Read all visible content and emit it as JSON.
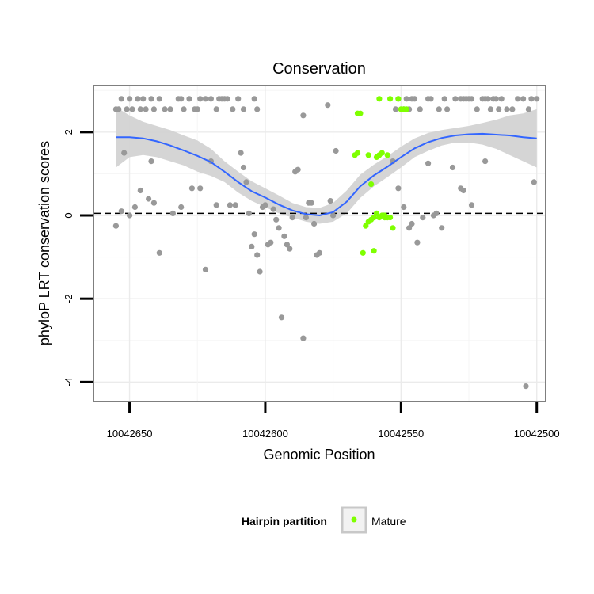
{
  "chart_data": {
    "type": "scatter",
    "title": "Conservation",
    "xlabel": "Genomic Position",
    "ylabel": "phyloP LRT conservation scores",
    "xlim": [
      10042663,
      10042497
    ],
    "ylim": [
      -4.45,
      3.1
    ],
    "x_reversed": true,
    "x_ticks": [
      10042650,
      10042600,
      10042550,
      10042500
    ],
    "x_tick_labels": [
      "10042650",
      "10042600",
      "10042550",
      "10042500"
    ],
    "y_ticks": [
      -4,
      -2,
      0,
      2
    ],
    "y_tick_labels": [
      "-4",
      "-2",
      "0",
      "2"
    ],
    "grid": true,
    "reference_line": {
      "y": 0.05,
      "style": "dashed",
      "color": "#000000"
    },
    "legend": {
      "title": "Hairpin partition",
      "placement": "bottom",
      "entries": [
        {
          "label": "Mature",
          "color": "#7fff00"
        }
      ]
    },
    "colors": {
      "other": "#999999",
      "mature": "#7fff00",
      "smooth": "#3366ff",
      "ribbon": "#d3d3d3"
    },
    "series": [
      {
        "name": "",
        "color": "#999999",
        "points": [
          [
            10042655,
            2.55
          ],
          [
            10042653,
            2.8
          ],
          [
            10042654,
            2.55
          ],
          [
            10042651,
            2.55
          ],
          [
            10042650,
            2.8
          ],
          [
            10042649,
            2.55
          ],
          [
            10042647,
            2.8
          ],
          [
            10042646,
            2.55
          ],
          [
            10042645,
            2.8
          ],
          [
            10042644,
            2.55
          ],
          [
            10042642,
            2.8
          ],
          [
            10042641,
            2.55
          ],
          [
            10042639,
            2.8
          ],
          [
            10042637,
            2.55
          ],
          [
            10042635,
            2.55
          ],
          [
            10042632,
            2.8
          ],
          [
            10042631,
            2.8
          ],
          [
            10042630,
            2.55
          ],
          [
            10042628,
            2.8
          ],
          [
            10042626,
            2.55
          ],
          [
            10042625,
            2.55
          ],
          [
            10042624,
            2.8
          ],
          [
            10042622,
            2.8
          ],
          [
            10042620,
            2.8
          ],
          [
            10042618,
            2.55
          ],
          [
            10042617,
            2.8
          ],
          [
            10042616,
            2.8
          ],
          [
            10042615,
            2.8
          ],
          [
            10042614,
            2.8
          ],
          [
            10042612,
            2.55
          ],
          [
            10042610,
            2.8
          ],
          [
            10042608,
            2.55
          ],
          [
            10042604,
            2.8
          ],
          [
            10042603,
            2.55
          ],
          [
            10042655,
            -0.25
          ],
          [
            10042653,
            0.1
          ],
          [
            10042652,
            1.5
          ],
          [
            10042650,
            0.0
          ],
          [
            10042648,
            0.2
          ],
          [
            10042646,
            0.6
          ],
          [
            10042643,
            0.4
          ],
          [
            10042642,
            1.3
          ],
          [
            10042641,
            0.3
          ],
          [
            10042639,
            -0.9
          ],
          [
            10042634,
            0.05
          ],
          [
            10042631,
            0.2
          ],
          [
            10042627,
            0.65
          ],
          [
            10042624,
            0.65
          ],
          [
            10042622,
            -1.3
          ],
          [
            10042620,
            1.3
          ],
          [
            10042618,
            0.25
          ],
          [
            10042613,
            0.25
          ],
          [
            10042611,
            0.25
          ],
          [
            10042609,
            1.5
          ],
          [
            10042608,
            1.15
          ],
          [
            10042607,
            0.8
          ],
          [
            10042606,
            0.05
          ],
          [
            10042605,
            -0.75
          ],
          [
            10042604,
            -0.45
          ],
          [
            10042603,
            -0.95
          ],
          [
            10042602,
            -1.35
          ],
          [
            10042601,
            0.2
          ],
          [
            10042600,
            0.25
          ],
          [
            10042599,
            -0.7
          ],
          [
            10042598,
            -0.65
          ],
          [
            10042597,
            0.15
          ],
          [
            10042596,
            -0.1
          ],
          [
            10042595,
            -0.3
          ],
          [
            10042594,
            -2.45
          ],
          [
            10042593,
            -0.5
          ],
          [
            10042592,
            -0.7
          ],
          [
            10042591,
            -0.8
          ],
          [
            10042590,
            -0.05
          ],
          [
            10042589,
            1.05
          ],
          [
            10042588,
            1.1
          ],
          [
            10042586,
            2.4
          ],
          [
            10042585,
            -0.05
          ],
          [
            10042584,
            0.3
          ],
          [
            10042583,
            0.3
          ],
          [
            10042582,
            -0.2
          ],
          [
            10042581,
            -0.95
          ],
          [
            10042580,
            -0.9
          ],
          [
            10042586,
            -2.95
          ],
          [
            10042577,
            2.65
          ],
          [
            10042576,
            0.35
          ],
          [
            10042575,
            0.0
          ],
          [
            10042574,
            1.55
          ],
          [
            10042552,
            2.55
          ],
          [
            10042551,
            2.8
          ],
          [
            10042549,
            2.55
          ],
          [
            10042548,
            2.8
          ],
          [
            10042547,
            2.55
          ],
          [
            10042546,
            2.8
          ],
          [
            10042545,
            2.8
          ],
          [
            10042543,
            2.55
          ],
          [
            10042540,
            2.8
          ],
          [
            10042539,
            2.8
          ],
          [
            10042536,
            2.55
          ],
          [
            10042534,
            2.8
          ],
          [
            10042533,
            2.55
          ],
          [
            10042530,
            2.8
          ],
          [
            10042528,
            2.8
          ],
          [
            10042527,
            2.8
          ],
          [
            10042526,
            2.8
          ],
          [
            10042525,
            2.8
          ],
          [
            10042524,
            2.8
          ],
          [
            10042522,
            2.55
          ],
          [
            10042520,
            2.8
          ],
          [
            10042519,
            2.8
          ],
          [
            10042518,
            2.8
          ],
          [
            10042517,
            2.55
          ],
          [
            10042516,
            2.8
          ],
          [
            10042515,
            2.8
          ],
          [
            10042514,
            2.55
          ],
          [
            10042513,
            2.8
          ],
          [
            10042511,
            2.55
          ],
          [
            10042509,
            2.55
          ],
          [
            10042507,
            2.8
          ],
          [
            10042505,
            2.8
          ],
          [
            10042503,
            2.55
          ],
          [
            10042502,
            2.8
          ],
          [
            10042500,
            2.8
          ],
          [
            10042553,
            1.3
          ],
          [
            10042551,
            0.65
          ],
          [
            10042549,
            0.2
          ],
          [
            10042547,
            -0.3
          ],
          [
            10042546,
            -0.2
          ],
          [
            10042544,
            -0.65
          ],
          [
            10042542,
            -0.05
          ],
          [
            10042540,
            1.25
          ],
          [
            10042538,
            0.0
          ],
          [
            10042537,
            0.05
          ],
          [
            10042535,
            -0.3
          ],
          [
            10042531,
            1.15
          ],
          [
            10042528,
            0.65
          ],
          [
            10042527,
            0.6
          ],
          [
            10042524,
            0.25
          ],
          [
            10042519,
            1.3
          ],
          [
            10042504,
            -4.1
          ],
          [
            10042501,
            0.8
          ]
        ]
      },
      {
        "name": "Mature",
        "color": "#7fff00",
        "points": [
          [
            10042566,
            2.45
          ],
          [
            10042565,
            2.45
          ],
          [
            10042567,
            1.45
          ],
          [
            10042566,
            1.5
          ],
          [
            10042562,
            1.45
          ],
          [
            10042557,
            1.5
          ],
          [
            10042554,
            2.8
          ],
          [
            10042550,
            2.55
          ],
          [
            10042549,
            2.55
          ],
          [
            10042548,
            2.55
          ],
          [
            10042551,
            2.8
          ],
          [
            10042558,
            2.8
          ],
          [
            10042558,
            1.45
          ],
          [
            10042561,
            0.75
          ],
          [
            10042559,
            1.4
          ],
          [
            10042555,
            1.45
          ],
          [
            10042556,
            -0.05
          ],
          [
            10042564,
            -0.9
          ],
          [
            10042563,
            -0.25
          ],
          [
            10042562,
            -0.15
          ],
          [
            10042561,
            -0.1
          ],
          [
            10042560,
            -0.05
          ],
          [
            10042559,
            0.05
          ],
          [
            10042558,
            -0.05
          ],
          [
            10042557,
            0.0
          ],
          [
            10042556,
            0.0
          ],
          [
            10042555,
            -0.05
          ],
          [
            10042554,
            -0.05
          ],
          [
            10042553,
            -0.3
          ],
          [
            10042560,
            -0.85
          ]
        ]
      }
    ],
    "smooth": {
      "x": [
        10042655,
        10042650,
        10042645,
        10042640,
        10042635,
        10042630,
        10042625,
        10042620,
        10042615,
        10042610,
        10042605,
        10042600,
        10042595,
        10042590,
        10042585,
        10042580,
        10042575,
        10042570,
        10042565,
        10042560,
        10042555,
        10042550,
        10042545,
        10042540,
        10042535,
        10042530,
        10042525,
        10042520,
        10042515,
        10042510,
        10042505,
        10042500
      ],
      "y": [
        1.88,
        1.88,
        1.85,
        1.78,
        1.68,
        1.56,
        1.43,
        1.28,
        1.05,
        0.8,
        0.58,
        0.43,
        0.26,
        0.12,
        0.03,
        0.0,
        0.08,
        0.33,
        0.7,
        0.96,
        1.17,
        1.4,
        1.61,
        1.76,
        1.86,
        1.92,
        1.95,
        1.96,
        1.94,
        1.92,
        1.88,
        1.85
      ],
      "lower": [
        1.15,
        1.4,
        1.45,
        1.4,
        1.3,
        1.2,
        1.05,
        0.95,
        0.8,
        0.55,
        0.35,
        0.2,
        0.05,
        -0.05,
        -0.15,
        -0.2,
        -0.15,
        0.05,
        0.42,
        0.7,
        0.92,
        1.15,
        1.4,
        1.55,
        1.68,
        1.75,
        1.75,
        1.7,
        1.6,
        1.45,
        1.3,
        1.15
      ],
      "upper": [
        2.6,
        2.4,
        2.25,
        2.15,
        2.05,
        1.92,
        1.8,
        1.6,
        1.3,
        1.05,
        0.82,
        0.65,
        0.48,
        0.3,
        0.2,
        0.18,
        0.3,
        0.6,
        0.98,
        1.22,
        1.42,
        1.65,
        1.85,
        1.98,
        2.05,
        2.1,
        2.15,
        2.22,
        2.3,
        2.4,
        2.45,
        2.55
      ]
    }
  }
}
